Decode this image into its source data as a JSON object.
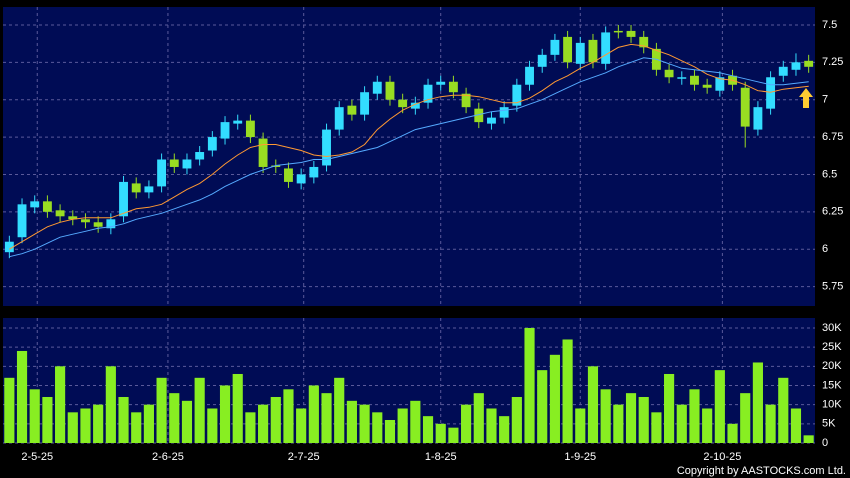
{
  "chart_data": [
    {
      "type": "candlestick",
      "up_color": "#33ddff",
      "down_color": "#99dd22",
      "open": [
        5.98,
        6.08,
        6.28,
        6.32,
        6.26,
        6.22,
        6.2,
        6.18,
        6.14,
        6.22,
        6.44,
        6.38,
        6.42,
        6.6,
        6.54,
        6.6,
        6.66,
        6.74,
        6.84,
        6.86,
        6.74,
        6.56,
        6.54,
        6.44,
        6.48,
        6.56,
        6.8,
        6.96,
        6.9,
        7.04,
        7.12,
        7.0,
        6.94,
        6.98,
        7.1,
        7.12,
        7.04,
        6.94,
        6.84,
        6.88,
        6.96,
        7.1,
        7.22,
        7.3,
        7.42,
        7.24,
        7.4,
        7.24,
        7.46,
        7.46,
        7.42,
        7.34,
        7.2,
        7.14,
        7.16,
        7.1,
        7.06,
        7.16,
        7.08,
        6.8,
        6.94,
        7.16,
        7.2,
        7.26
      ],
      "high": [
        6.09,
        6.34,
        6.36,
        6.36,
        6.3,
        6.26,
        6.24,
        6.22,
        6.24,
        6.49,
        6.48,
        6.46,
        6.64,
        6.64,
        6.64,
        6.69,
        6.79,
        6.89,
        6.9,
        6.9,
        6.78,
        6.6,
        6.58,
        6.54,
        6.59,
        6.84,
        6.99,
        7.0,
        7.09,
        7.16,
        7.16,
        7.04,
        7.02,
        7.14,
        7.16,
        7.16,
        7.08,
        6.98,
        6.92,
        6.99,
        7.14,
        7.26,
        7.34,
        7.44,
        7.46,
        7.42,
        7.44,
        7.49,
        7.5,
        7.5,
        7.46,
        7.38,
        7.24,
        7.19,
        7.2,
        7.14,
        7.19,
        7.2,
        7.12,
        6.99,
        7.19,
        7.26,
        7.31,
        7.3
      ],
      "low": [
        5.94,
        6.04,
        6.24,
        6.21,
        6.18,
        6.16,
        6.14,
        6.11,
        6.1,
        6.18,
        6.34,
        6.34,
        6.38,
        6.51,
        6.5,
        6.56,
        6.62,
        6.7,
        6.8,
        6.71,
        6.51,
        6.51,
        6.41,
        6.4,
        6.44,
        6.52,
        6.76,
        6.86,
        6.86,
        7.0,
        6.96,
        6.91,
        6.9,
        6.94,
        7.06,
        7.01,
        6.91,
        6.81,
        6.8,
        6.84,
        6.92,
        7.06,
        7.18,
        7.26,
        7.21,
        7.2,
        7.21,
        7.2,
        7.41,
        7.38,
        7.31,
        7.16,
        7.11,
        7.1,
        7.06,
        7.04,
        7.02,
        7.06,
        6.68,
        6.76,
        6.9,
        7.12,
        7.16,
        7.18
      ],
      "close": [
        6.05,
        6.3,
        6.32,
        6.25,
        6.22,
        6.2,
        6.18,
        6.15,
        6.2,
        6.45,
        6.38,
        6.42,
        6.6,
        6.55,
        6.6,
        6.65,
        6.75,
        6.85,
        6.86,
        6.75,
        6.55,
        6.55,
        6.45,
        6.5,
        6.55,
        6.8,
        6.95,
        6.9,
        7.05,
        7.12,
        7.0,
        6.95,
        6.98,
        7.1,
        7.12,
        7.05,
        6.95,
        6.85,
        6.88,
        6.95,
        7.1,
        7.22,
        7.3,
        7.4,
        7.25,
        7.38,
        7.25,
        7.45,
        7.45,
        7.42,
        7.35,
        7.2,
        7.15,
        7.15,
        7.1,
        7.08,
        7.15,
        7.1,
        6.82,
        6.95,
        7.15,
        7.22,
        7.25,
        7.22
      ],
      "lines": [
        {
          "color": "#ff9933",
          "values": [
            6.0,
            6.05,
            6.1,
            6.15,
            6.18,
            6.2,
            6.21,
            6.21,
            6.21,
            6.24,
            6.27,
            6.28,
            6.3,
            6.35,
            6.4,
            6.44,
            6.5,
            6.57,
            6.63,
            6.68,
            6.7,
            6.7,
            6.68,
            6.66,
            6.63,
            6.62,
            6.63,
            6.65,
            6.7,
            6.8,
            6.87,
            6.93,
            6.97,
            7.0,
            7.02,
            7.03,
            7.03,
            7.02,
            7.0,
            6.98,
            6.98,
            7.01,
            7.06,
            7.12,
            7.16,
            7.21,
            7.25,
            7.3,
            7.35,
            7.37,
            7.36,
            7.33,
            7.3,
            7.26,
            7.22,
            7.17,
            7.14,
            7.13,
            7.1,
            7.06,
            7.05,
            7.07,
            7.08,
            7.09
          ]
        },
        {
          "color": "#55aaff",
          "values": [
            5.95,
            5.97,
            6.0,
            6.04,
            6.08,
            6.1,
            6.12,
            6.14,
            6.15,
            6.17,
            6.2,
            6.22,
            6.24,
            6.27,
            6.3,
            6.33,
            6.37,
            6.42,
            6.46,
            6.5,
            6.53,
            6.56,
            6.57,
            6.58,
            6.6,
            6.6,
            6.62,
            6.64,
            6.66,
            6.68,
            6.72,
            6.76,
            6.8,
            6.82,
            6.84,
            6.86,
            6.88,
            6.9,
            6.92,
            6.93,
            6.94,
            6.97,
            7.0,
            7.04,
            7.08,
            7.12,
            7.15,
            7.18,
            7.22,
            7.25,
            7.28,
            7.27,
            7.24,
            7.21,
            7.2,
            7.19,
            7.18,
            7.16,
            7.14,
            7.12,
            7.1,
            7.1,
            7.11,
            7.12
          ]
        }
      ],
      "ylim": [
        5.62,
        7.62
      ],
      "yticks": [
        5.75,
        6,
        6.25,
        6.5,
        6.75,
        7,
        7.25,
        7.5
      ],
      "grid": true
    },
    {
      "type": "bar",
      "color": "#88ee22",
      "values": [
        17000,
        24000,
        14000,
        12000,
        20000,
        8000,
        9000,
        10000,
        20000,
        12000,
        8000,
        10000,
        17000,
        13000,
        11000,
        17000,
        9000,
        15000,
        18000,
        8000,
        10000,
        12000,
        14000,
        9000,
        15000,
        13000,
        17000,
        11000,
        10000,
        8000,
        6000,
        9000,
        11000,
        7000,
        5000,
        4000,
        10000,
        13000,
        9000,
        7000,
        12000,
        30000,
        19000,
        23000,
        27000,
        9000,
        20000,
        14000,
        10000,
        13000,
        12000,
        8000,
        18000,
        10000,
        14000,
        9000,
        19000,
        5000,
        13000,
        21000,
        10000,
        17000,
        9000,
        2000
      ],
      "ylim": [
        0,
        32600
      ],
      "yticks": [
        0,
        {
          "value": 5000,
          "label": "5K"
        },
        {
          "value": 10000,
          "label": "10K"
        },
        {
          "value": 15000,
          "label": "15K"
        },
        {
          "value": 20000,
          "label": "20K"
        },
        {
          "value": 25000,
          "label": "25K"
        },
        {
          "value": 30000,
          "label": "30K"
        }
      ],
      "xticks": [
        {
          "value": 2.2,
          "label": "2-5-25"
        },
        {
          "value": 12.5,
          "label": "2-6-25"
        },
        {
          "value": 23.2,
          "label": "2-7-25"
        },
        {
          "value": 34,
          "label": "1-8-25"
        },
        {
          "value": 45,
          "label": "1-9-25"
        },
        {
          "value": 56.2,
          "label": "2-10-25"
        }
      ],
      "grid": true
    }
  ],
  "copyright": "Copyright by AASTOCKS.com Ltd."
}
